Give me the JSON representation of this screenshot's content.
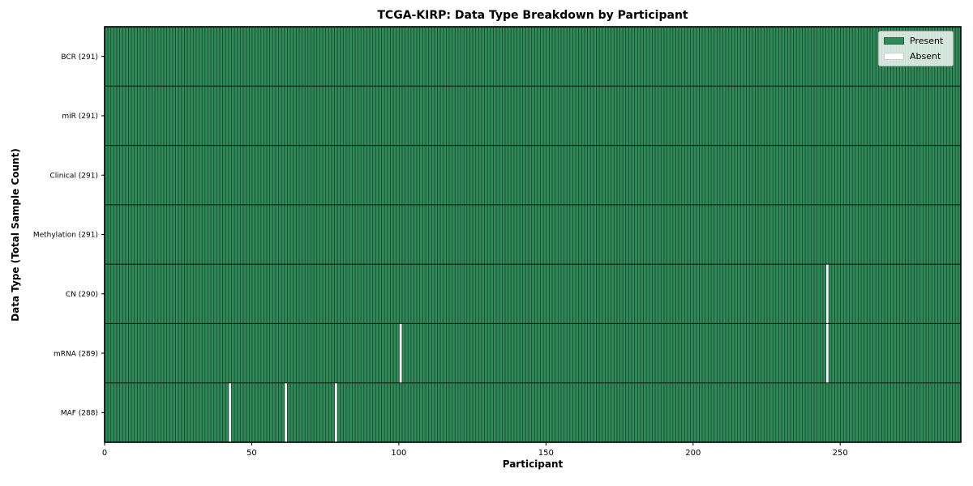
{
  "chart_data": {
    "type": "heatmap",
    "title": "TCGA-KIRP: Data Type Breakdown by Participant",
    "xlabel": "Participant",
    "ylabel": "Data Type (Total Sample Count)",
    "xlim": [
      0,
      291
    ],
    "n_participants": 291,
    "x_ticks": [
      0,
      50,
      100,
      150,
      200,
      250
    ],
    "rows": [
      {
        "label": "BCR (291)",
        "data_type": "BCR",
        "present_count": 291,
        "absent_participants": []
      },
      {
        "label": "miR (291)",
        "data_type": "miR",
        "present_count": 291,
        "absent_participants": []
      },
      {
        "label": "Clinical (291)",
        "data_type": "Clinical",
        "present_count": 291,
        "absent_participants": []
      },
      {
        "label": "Methylation (291)",
        "data_type": "Methylation",
        "present_count": 291,
        "absent_participants": []
      },
      {
        "label": "CN (290)",
        "data_type": "CN",
        "present_count": 290,
        "absent_participants": [
          245
        ]
      },
      {
        "label": "mRNA (289)",
        "data_type": "mRNA",
        "present_count": 289,
        "absent_participants": [
          100,
          245
        ]
      },
      {
        "label": "MAF (288)",
        "data_type": "MAF",
        "present_count": 288,
        "absent_participants": [
          42,
          61,
          78
        ]
      }
    ],
    "legend": [
      {
        "label": "Present",
        "color": "#2e8b57",
        "edge": "#2a5c40"
      },
      {
        "label": "Absent",
        "color": "#ffffff",
        "edge": "#cccccc"
      }
    ],
    "legend_position": "upper right",
    "grid": false,
    "colors": {
      "present": "#2e8b57",
      "bar_edge": "#1c4631",
      "absent": "#ffffff",
      "row_separator": "#141414",
      "spine": "#000000",
      "text": "#000000"
    }
  }
}
